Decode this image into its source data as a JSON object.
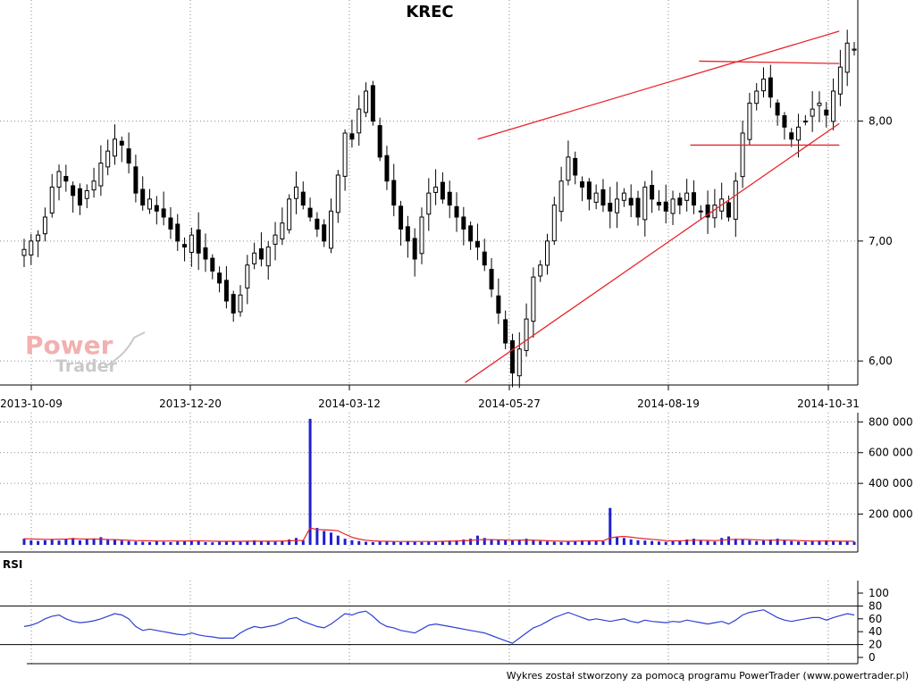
{
  "watermark": {
    "line1": "Power",
    "line2": "Trader"
  },
  "footer": "Wykres został stworzony za pomocą programu PowerTrader (www.powertrader.pl)",
  "colors": {
    "candle": "#000000",
    "trendline": "#e8232a",
    "volume": "#1f1fd0",
    "volume_ma": "#e8232a",
    "rsi": "#2f3fd2",
    "grid": "#8a8a8a"
  },
  "chart_data": [
    {
      "type": "candlestick",
      "title": "KREC",
      "x_tick_labels": [
        "2013-10-09",
        "2013-12-20",
        "2014-03-12",
        "2014-05-27",
        "2014-08-19",
        "2014-10-31"
      ],
      "y_tick_labels": [
        "6,00",
        "7,00",
        "8,00"
      ],
      "ylim": [
        5.8,
        8.95
      ],
      "grid": true,
      "close_series": {
        "name": "",
        "values": [
          6.93,
          7.0,
          7.05,
          7.2,
          7.45,
          7.58,
          7.5,
          7.38,
          7.3,
          7.42,
          7.5,
          7.65,
          7.75,
          7.85,
          7.8,
          7.65,
          7.4,
          7.3,
          7.35,
          7.25,
          7.2,
          7.1,
          7.0,
          6.95,
          7.05,
          6.9,
          6.85,
          6.75,
          6.65,
          6.5,
          6.4,
          6.55,
          6.8,
          6.9,
          6.85,
          6.95,
          7.05,
          7.15,
          7.35,
          7.45,
          7.3,
          7.2,
          7.1,
          7.0,
          7.25,
          7.55,
          7.9,
          7.85,
          8.1,
          8.25,
          8.0,
          7.7,
          7.5,
          7.3,
          7.1,
          7.0,
          6.85,
          7.2,
          7.4,
          7.45,
          7.35,
          7.3,
          7.2,
          7.1,
          7.0,
          6.95,
          6.8,
          6.6,
          6.4,
          6.15,
          5.9,
          6.1,
          6.35,
          6.7,
          6.8,
          7.0,
          7.3,
          7.5,
          7.7,
          7.55,
          7.45,
          7.35,
          7.4,
          7.3,
          7.25,
          7.35,
          7.4,
          7.3,
          7.2,
          7.45,
          7.35,
          7.3,
          7.25,
          7.35,
          7.3,
          7.4,
          7.3,
          7.25,
          7.2,
          7.3,
          7.35,
          7.2,
          7.5,
          7.9,
          8.15,
          8.25,
          8.35,
          8.2,
          8.05,
          7.95,
          7.85,
          7.95,
          8.0,
          8.1,
          8.15,
          8.05,
          8.25,
          8.45,
          8.65,
          8.6
        ]
      },
      "trendlines": [
        {
          "from": [
            "2014-05-12",
            7.85
          ],
          "to": [
            "2014-11-05",
            8.75
          ]
        },
        {
          "from": [
            "2014-05-06",
            5.82
          ],
          "to": [
            "2014-11-05",
            7.98
          ]
        },
        {
          "from": [
            "2014-09-02",
            8.5
          ],
          "to": [
            "2014-11-05",
            8.48
          ]
        },
        {
          "from": [
            "2014-08-29",
            7.8
          ],
          "to": [
            "2014-11-05",
            7.8
          ]
        }
      ]
    },
    {
      "type": "bar",
      "title": "",
      "y_tick_labels": [
        "200 000",
        "400 000",
        "600 000",
        "800 000"
      ],
      "ylim": [
        0,
        860000
      ],
      "volume_values": [
        40000,
        30000,
        25000,
        30000,
        35000,
        28000,
        40000,
        45000,
        30000,
        35000,
        42000,
        50000,
        38000,
        33000,
        28000,
        25000,
        22000,
        20000,
        18000,
        24000,
        20000,
        18000,
        22000,
        25000,
        30000,
        28000,
        18000,
        16000,
        20000,
        25000,
        22000,
        20000,
        26000,
        30000,
        22000,
        24000,
        20000,
        25000,
        35000,
        45000,
        30000,
        820000,
        110000,
        90000,
        80000,
        60000,
        40000,
        30000,
        25000,
        20000,
        18000,
        22000,
        25000,
        20000,
        18000,
        24000,
        20000,
        18000,
        22000,
        20000,
        25000,
        28000,
        30000,
        35000,
        40000,
        60000,
        45000,
        38000,
        32000,
        30000,
        28000,
        35000,
        40000,
        30000,
        25000,
        22000,
        20000,
        18000,
        22000,
        25000,
        30000,
        28000,
        26000,
        24000,
        240000,
        55000,
        45000,
        35000,
        30000,
        28000,
        25000,
        22000,
        20000,
        24000,
        28000,
        35000,
        40000,
        30000,
        25000,
        22000,
        45000,
        55000,
        40000,
        35000,
        30000,
        25000,
        28000,
        35000,
        40000,
        30000,
        25000,
        22000,
        20000,
        24000,
        28000,
        30000,
        26000,
        24000,
        22000,
        20000
      ],
      "ma_values": [
        40000,
        39000,
        37000,
        36000,
        36000,
        37000,
        38000,
        40000,
        39000,
        38000,
        38000,
        37000,
        35000,
        34000,
        32000,
        30000,
        28000,
        27000,
        26000,
        25000,
        25000,
        25000,
        25000,
        25000,
        26000,
        26000,
        25000,
        24000,
        23000,
        23000,
        23000,
        23000,
        24000,
        24000,
        24000,
        24000,
        24000,
        25000,
        26000,
        28000,
        29000,
        110000,
        100000,
        98000,
        96000,
        92000,
        70000,
        50000,
        38000,
        30000,
        26000,
        24000,
        23000,
        22000,
        22000,
        22000,
        22000,
        22000,
        22000,
        22000,
        23000,
        24000,
        25000,
        27000,
        29000,
        33000,
        34000,
        34000,
        33000,
        32000,
        31000,
        31000,
        32000,
        31000,
        29000,
        27000,
        25000,
        24000,
        23000,
        24000,
        25000,
        26000,
        26000,
        26000,
        46000,
        52000,
        55000,
        50000,
        45000,
        40000,
        36000,
        32000,
        28000,
        26000,
        26000,
        28000,
        30000,
        30000,
        29000,
        28000,
        30000,
        34000,
        36000,
        36000,
        35000,
        33000,
        31000,
        30000,
        31000,
        31000,
        30000,
        28000,
        26000,
        25000,
        25000,
        25000,
        25000,
        24000,
        24000,
        23000
      ]
    },
    {
      "type": "line",
      "title": "RSI",
      "y_tick_labels": [
        "0",
        "20",
        "40",
        "60",
        "80",
        "100"
      ],
      "ylim": [
        0,
        100
      ],
      "reference_lines": [
        20,
        80
      ],
      "series": [
        {
          "name": "",
          "values": [
            48,
            50,
            54,
            60,
            64,
            66,
            60,
            56,
            54,
            55,
            57,
            60,
            64,
            68,
            66,
            60,
            48,
            42,
            44,
            42,
            40,
            38,
            36,
            35,
            38,
            35,
            33,
            32,
            30,
            30,
            30,
            38,
            44,
            48,
            46,
            48,
            50,
            54,
            60,
            62,
            56,
            52,
            48,
            46,
            52,
            60,
            68,
            66,
            70,
            72,
            64,
            54,
            48,
            46,
            42,
            40,
            38,
            44,
            50,
            52,
            50,
            48,
            46,
            44,
            42,
            40,
            38,
            34,
            30,
            26,
            22,
            30,
            38,
            46,
            50,
            56,
            62,
            66,
            70,
            66,
            62,
            58,
            60,
            58,
            56,
            58,
            60,
            56,
            54,
            58,
            56,
            55,
            54,
            56,
            55,
            58,
            56,
            54,
            52,
            54,
            56,
            52,
            58,
            66,
            70,
            72,
            74,
            68,
            62,
            58,
            56,
            58,
            60,
            62,
            62,
            58,
            62,
            65,
            68,
            66
          ]
        }
      ]
    }
  ]
}
